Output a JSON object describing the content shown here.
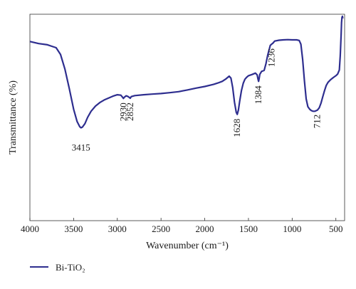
{
  "chart_data": {
    "type": "line",
    "xlabel": "Wavenumber (cm⁻¹)",
    "ylabel": "Transmittance (%)",
    "xlim": [
      4000,
      400
    ],
    "ylim": [
      0,
      100
    ],
    "x_reversed": true,
    "x_ticks": [
      4000,
      3500,
      3000,
      2500,
      2000,
      1500,
      1000,
      500
    ],
    "x_tick_labels": [
      "4000",
      "3500",
      "3000",
      "2500",
      "2000",
      "1500",
      "1000",
      "500"
    ],
    "grid": false,
    "legend_position": "bottom-left",
    "series": [
      {
        "name": "Bi-TiO₂",
        "color": "#2e2e8f",
        "x": [
          4000,
          3900,
          3800,
          3750,
          3700,
          3650,
          3600,
          3550,
          3500,
          3460,
          3430,
          3415,
          3400,
          3370,
          3340,
          3300,
          3250,
          3200,
          3150,
          3100,
          3050,
          3000,
          2960,
          2940,
          2930,
          2920,
          2900,
          2880,
          2860,
          2852,
          2840,
          2800,
          2700,
          2600,
          2500,
          2400,
          2300,
          2200,
          2100,
          2000,
          1900,
          1850,
          1800,
          1760,
          1740,
          1720,
          1700,
          1680,
          1660,
          1640,
          1628,
          1615,
          1600,
          1580,
          1560,
          1540,
          1520,
          1500,
          1460,
          1420,
          1400,
          1390,
          1384,
          1378,
          1370,
          1350,
          1320,
          1300,
          1280,
          1260,
          1250,
          1236,
          1220,
          1200,
          1150,
          1100,
          1050,
          1000,
          950,
          920,
          900,
          880,
          860,
          840,
          820,
          800,
          780,
          760,
          740,
          712,
          690,
          670,
          650,
          630,
          610,
          590,
          560,
          530,
          500,
          480,
          460,
          450,
          440,
          435,
          430,
          425,
          420
        ],
        "values": [
          86.8,
          85.8,
          85.2,
          84.5,
          83.8,
          80.5,
          73.5,
          64.0,
          54.0,
          48.0,
          45.5,
          45.0,
          45.3,
          47.0,
          50.0,
          53.0,
          55.5,
          57.2,
          58.5,
          59.4,
          60.3,
          61.0,
          60.8,
          59.8,
          59.2,
          59.8,
          60.5,
          60.2,
          59.6,
          59.3,
          60.1,
          60.6,
          61.0,
          61.3,
          61.6,
          62.0,
          62.5,
          63.3,
          64.2,
          65.0,
          66.0,
          66.7,
          67.5,
          68.6,
          69.3,
          70.0,
          69.0,
          64.5,
          57.5,
          52.5,
          51.5,
          53.5,
          58.0,
          63.0,
          66.5,
          68.5,
          69.5,
          70.2,
          70.8,
          71.5,
          70.6,
          68.5,
          67.5,
          68.7,
          70.9,
          72.3,
          72.8,
          76.0,
          80.2,
          83.3,
          84.9,
          85.5,
          86.0,
          87.0,
          87.4,
          87.6,
          87.7,
          87.6,
          87.6,
          87.3,
          85.5,
          78.0,
          68.0,
          59.0,
          55.2,
          54.0,
          53.3,
          53.0,
          53.0,
          53.5,
          54.7,
          57.0,
          60.0,
          63.0,
          65.5,
          67.0,
          68.3,
          69.3,
          70.2,
          71.0,
          73.0,
          80.0,
          90.0,
          96.0,
          98.5,
          99.0,
          98.0
        ]
      }
    ],
    "annotations": [
      {
        "text": "3415",
        "x": 3415,
        "rotated": false
      },
      {
        "text": "2930",
        "x": 2930,
        "rotated": true
      },
      {
        "text": "2852",
        "x": 2852,
        "rotated": true
      },
      {
        "text": "1628",
        "x": 1628,
        "rotated": true
      },
      {
        "text": "1384",
        "x": 1384,
        "rotated": true
      },
      {
        "text": "1236",
        "x": 1236,
        "rotated": true
      },
      {
        "text": "712",
        "x": 712,
        "rotated": true
      }
    ]
  }
}
